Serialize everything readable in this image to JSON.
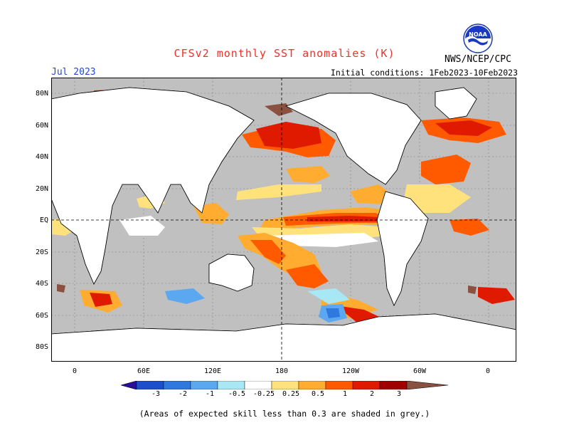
{
  "header": {
    "title": "CFSv2 monthly SST anomalies (K)",
    "month": "Jul 2023",
    "initial_conditions": "Initial conditions: 1Feb2023-10Feb2023",
    "agency": "NWS/NCEP/CPC",
    "logo_text": "NOAA"
  },
  "map": {
    "lat_labels": [
      "80N",
      "60N",
      "40N",
      "20N",
      "EQ",
      "20S",
      "40S",
      "60S",
      "80S"
    ],
    "lon_labels": [
      "0",
      "60E",
      "120E",
      "180",
      "120W",
      "60W",
      "0"
    ],
    "background_color": "#c0c0c0",
    "land_color": "#ffffff",
    "reference_lines": [
      "EQ",
      "180"
    ],
    "anomaly_regions": [
      {
        "name": "equatorial-pacific",
        "level": 3
      },
      {
        "name": "north-pacific",
        "level": 2
      },
      {
        "name": "south-pacific-convergence",
        "level": 1.5
      },
      {
        "name": "north-atlantic",
        "level": 2
      },
      {
        "name": "southern-ocean-pacific-negative",
        "level": -1
      }
    ]
  },
  "colorbar": {
    "labels": [
      "-3",
      "-2",
      "-1",
      "-0.5",
      "-0.25",
      "0.25",
      "0.5",
      "1",
      "2",
      "3"
    ],
    "colors": [
      "#2a0f9a",
      "#1c4fcc",
      "#2f78e0",
      "#5ca8f0",
      "#a8e8f4",
      "#ffffff",
      "#ffe27c",
      "#ffac30",
      "#ff5a00",
      "#e01a00",
      "#a00000",
      "#8a5040"
    ]
  },
  "caption": "(Areas of expected skill less than 0.3 are shaded in grey.)"
}
